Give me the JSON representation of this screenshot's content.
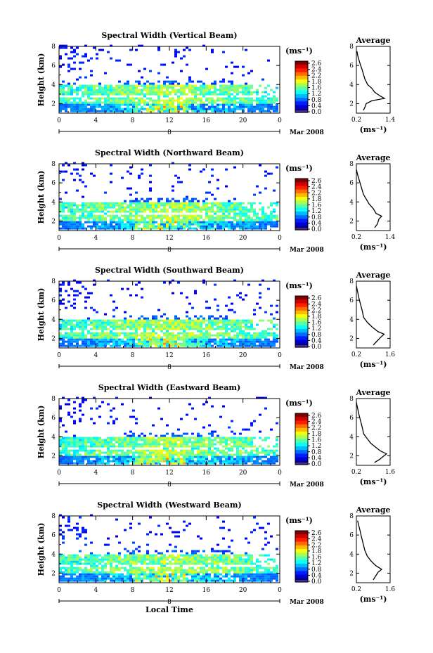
{
  "chart_data": [
    {
      "type": "heatmap",
      "title": "Spectral Width (Vertical Beam)",
      "ylabel": "Height (km)",
      "yticks": [
        "2",
        "4",
        "6",
        "8"
      ],
      "xticks": [
        "0",
        "4",
        "8",
        "12",
        "16",
        "20",
        "0"
      ],
      "date_label": "8",
      "month_label": "Mar 2008",
      "ylim": [
        1,
        8
      ],
      "xlim": [
        0,
        24
      ],
      "colorbar": {
        "unit": "(ms⁻¹)",
        "ticks": [
          "2.6",
          "2.4",
          "2.2",
          "1.8",
          "1.6",
          "1.2",
          "0.8",
          "0.4",
          "0.0"
        ]
      },
      "profile": {
        "title": "Average",
        "xlabel": "(ms⁻¹)",
        "xticks": [
          "0.2",
          "1.4"
        ],
        "xlim": [
          0.2,
          1.4
        ],
        "yticks": [
          "2",
          "4",
          "6",
          "8"
        ],
        "points": [
          [
            0.45,
            1.3
          ],
          [
            0.5,
            1.6
          ],
          [
            0.55,
            2.0
          ],
          [
            0.75,
            2.3
          ],
          [
            1.2,
            2.55
          ],
          [
            1.05,
            2.8
          ],
          [
            0.85,
            3.2
          ],
          [
            0.75,
            3.6
          ],
          [
            0.6,
            4.0
          ],
          [
            0.5,
            4.6
          ],
          [
            0.45,
            5.1
          ],
          [
            0.4,
            5.6
          ],
          [
            0.35,
            6.0
          ],
          [
            0.3,
            6.5
          ],
          [
            0.25,
            7.0
          ],
          [
            0.22,
            7.5
          ]
        ]
      }
    },
    {
      "type": "heatmap",
      "title": "Spectral Width (Northward Beam)",
      "ylabel": "Height (km)",
      "yticks": [
        "2",
        "4",
        "6",
        "8"
      ],
      "xticks": [
        "0",
        "4",
        "8",
        "12",
        "16",
        "20",
        "0"
      ],
      "date_label": "8",
      "month_label": "Mar 2008",
      "ylim": [
        1,
        8
      ],
      "xlim": [
        0,
        24
      ],
      "colorbar": {
        "unit": "(ms⁻¹)",
        "ticks": [
          "2.6",
          "2.4",
          "2.2",
          "1.8",
          "1.6",
          "1.2",
          "0.8",
          "0.4",
          "0.0"
        ]
      },
      "profile": {
        "title": "Average",
        "xlabel": "(ms⁻¹)",
        "xticks": [
          "0.2",
          "1.4"
        ],
        "xlim": [
          0.2,
          1.4
        ],
        "yticks": [
          "2",
          "4",
          "6",
          "8"
        ],
        "points": [
          [
            0.85,
            1.3
          ],
          [
            0.95,
            1.7
          ],
          [
            1.0,
            2.2
          ],
          [
            1.1,
            2.5
          ],
          [
            0.9,
            2.8
          ],
          [
            0.8,
            3.3
          ],
          [
            0.65,
            3.8
          ],
          [
            0.55,
            4.3
          ],
          [
            0.45,
            4.8
          ],
          [
            0.4,
            5.3
          ],
          [
            0.35,
            5.8
          ],
          [
            0.3,
            6.3
          ],
          [
            0.25,
            6.8
          ],
          [
            0.2,
            7.4
          ]
        ]
      }
    },
    {
      "type": "heatmap",
      "title": "Spectral Width (Southward Beam)",
      "ylabel": "Height (km)",
      "yticks": [
        "2",
        "4",
        "6",
        "8"
      ],
      "xticks": [
        "0",
        "4",
        "8",
        "12",
        "16",
        "20",
        "0"
      ],
      "date_label": "8",
      "month_label": "Mar 2008",
      "ylim": [
        1,
        8
      ],
      "xlim": [
        0,
        24
      ],
      "colorbar": {
        "unit": "(ms⁻¹)",
        "ticks": [
          "2.6",
          "2.4",
          "2.2",
          "1.8",
          "1.6",
          "1.2",
          "0.8",
          "0.4",
          "0.0"
        ]
      },
      "profile": {
        "title": "Average",
        "xlabel": "(ms⁻¹)",
        "xticks": [
          "0.2",
          "1.6"
        ],
        "xlim": [
          0.2,
          1.6
        ],
        "yticks": [
          "2",
          "4",
          "6",
          "8"
        ],
        "points": [
          [
            0.9,
            1.3
          ],
          [
            1.05,
            1.7
          ],
          [
            1.2,
            2.1
          ],
          [
            1.35,
            2.45
          ],
          [
            1.1,
            2.7
          ],
          [
            0.85,
            3.2
          ],
          [
            0.65,
            3.7
          ],
          [
            0.5,
            4.2
          ],
          [
            0.45,
            4.8
          ],
          [
            0.4,
            5.3
          ],
          [
            0.35,
            5.8
          ],
          [
            0.3,
            6.3
          ],
          [
            0.25,
            6.9
          ],
          [
            0.2,
            7.5
          ]
        ]
      }
    },
    {
      "type": "heatmap",
      "title": "Spectral Width (Eastward Beam)",
      "ylabel": "Height (km)",
      "yticks": [
        "2",
        "4",
        "6",
        "8"
      ],
      "xticks": [
        "0",
        "4",
        "8",
        "12",
        "16",
        "20",
        "0"
      ],
      "date_label": "8",
      "month_label": "Mar 2008",
      "ylim": [
        1,
        8
      ],
      "xlim": [
        0,
        24
      ],
      "colorbar": {
        "unit": "(ms⁻¹)",
        "ticks": [
          "2.6",
          "2.4",
          "2.2",
          "1.8",
          "1.6",
          "1.2",
          "0.8",
          "0.4",
          "0.0"
        ]
      },
      "profile": {
        "title": "Average",
        "xlabel": "(ms⁻¹)",
        "xticks": [
          "0.2",
          "1.6"
        ],
        "xlim": [
          0.2,
          1.6
        ],
        "yticks": [
          "2",
          "4",
          "6",
          "8"
        ],
        "points": [
          [
            0.95,
            1.3
          ],
          [
            1.15,
            1.6
          ],
          [
            1.3,
            1.9
          ],
          [
            1.45,
            2.2
          ],
          [
            1.2,
            2.5
          ],
          [
            1.0,
            2.9
          ],
          [
            0.8,
            3.3
          ],
          [
            0.65,
            3.8
          ],
          [
            0.5,
            4.3
          ],
          [
            0.45,
            4.9
          ],
          [
            0.4,
            5.4
          ],
          [
            0.35,
            5.9
          ],
          [
            0.3,
            6.4
          ],
          [
            0.25,
            7.0
          ],
          [
            0.2,
            7.6
          ]
        ]
      }
    },
    {
      "type": "heatmap",
      "title": "Spectral Width (Westward Beam)",
      "ylabel": "Height (km)",
      "yticks": [
        "2",
        "4",
        "6",
        "8"
      ],
      "xticks": [
        "0",
        "4",
        "8",
        "12",
        "16",
        "20",
        "0"
      ],
      "date_label": "8",
      "month_label": "Mar 2008",
      "xlabel": "Local Time",
      "ylim": [
        1,
        8
      ],
      "xlim": [
        0,
        24
      ],
      "colorbar": {
        "unit": "(ms⁻¹)",
        "ticks": [
          "2.6",
          "2.4",
          "2.2",
          "1.8",
          "1.6",
          "1.2",
          "0.8",
          "0.4",
          "0.0"
        ]
      },
      "profile": {
        "title": "Average",
        "xlabel": "(ms⁻¹)",
        "xticks": [
          "0.2",
          "1.6"
        ],
        "xlim": [
          0.2,
          1.6
        ],
        "yticks": [
          "2",
          "4",
          "6",
          "8"
        ],
        "points": [
          [
            0.9,
            1.3
          ],
          [
            1.0,
            1.7
          ],
          [
            1.1,
            2.1
          ],
          [
            1.25,
            2.4
          ],
          [
            1.0,
            2.8
          ],
          [
            0.8,
            3.3
          ],
          [
            0.65,
            3.8
          ],
          [
            0.55,
            4.4
          ],
          [
            0.5,
            4.9
          ],
          [
            0.45,
            5.4
          ],
          [
            0.4,
            5.9
          ],
          [
            0.35,
            6.5
          ],
          [
            0.3,
            7.0
          ],
          [
            0.25,
            7.5
          ]
        ]
      }
    }
  ]
}
